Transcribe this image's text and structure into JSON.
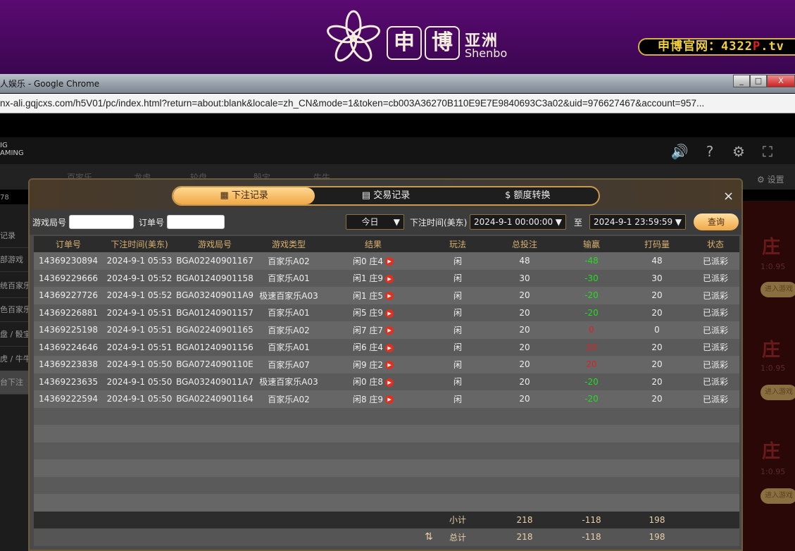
{
  "banner": {
    "logo_char1": "申",
    "logo_char2": "博",
    "logo_cn": "亚洲",
    "logo_en": "Shenbo",
    "site_prefix": "申博官网：4322",
    "site_p": "P",
    "site_suffix": ".tv"
  },
  "browser": {
    "title": "人娱乐 - Google Chrome",
    "url": "nx-ali.gqjcxs.com/h5V01/pc/index.html?return=about:blank&locale=zh_CN&mode=1&token=cb003A36270B110E9E7E9840693C3a02&uid=976627467&account=957...",
    "min": "_",
    "max": "□",
    "close": "X"
  },
  "app": {
    "brand": "IG\nAMING",
    "balance": "78",
    "settings_label": "设置",
    "nav": [
      "百家乐",
      "龙虎",
      "轮盘",
      "骰宝",
      "牛牛"
    ],
    "sidebar": [
      "记录",
      "部游戏",
      "统百家乐",
      "色百家乐",
      "盘 / 骰宝",
      "虎 / 牛牛",
      "台下注"
    ],
    "cards": [
      {
        "zhuang": "庄",
        "ratio": "1:0.95",
        "enter": "进入游戏"
      },
      {
        "zhuang": "庄",
        "ratio": "1:0.95",
        "enter": "进入游戏"
      },
      {
        "zhuang": "庄",
        "ratio": "1:0.95",
        "enter": "进入游戏"
      }
    ]
  },
  "modal": {
    "tabs": [
      {
        "icon": "calendar-icon",
        "label": "下注记录",
        "active": true
      },
      {
        "icon": "clipboard-icon",
        "label": "交易记录"
      },
      {
        "icon": "coins-icon",
        "label": "额度转换"
      }
    ],
    "close": "×",
    "filters": {
      "round_label": "游戏局号",
      "round_value": "",
      "order_label": "订单号",
      "order_value": "",
      "period": "今日",
      "time_label": "下注时间(美东)",
      "from": "2024-9-1 00:00:00",
      "to_label": "至",
      "to": "2024-9-1 23:59:59",
      "query": "查询"
    },
    "columns": [
      "订单号",
      "下注时间(美东)",
      "游戏局号",
      "游戏类型",
      "结果",
      "玩法",
      "总投注",
      "输赢",
      "打码量",
      "状态"
    ],
    "rows": [
      [
        "14369230894",
        "2024-9-1 05:53",
        "BGA02240901167",
        "百家乐A02",
        "闲0 庄4",
        "闲",
        "48",
        "-48",
        "48",
        "已派彩"
      ],
      [
        "14369229666",
        "2024-9-1 05:52",
        "BGA01240901158",
        "百家乐A01",
        "闲1 庄9",
        "闲",
        "30",
        "-30",
        "30",
        "已派彩"
      ],
      [
        "14369227726",
        "2024-9-1 05:52",
        "BGA032409011A9",
        "极速百家乐A03",
        "闲1 庄5",
        "闲",
        "20",
        "-20",
        "20",
        "已派彩"
      ],
      [
        "14369226881",
        "2024-9-1 05:51",
        "BGA01240901157",
        "百家乐A01",
        "闲5 庄9",
        "闲",
        "20",
        "-20",
        "20",
        "已派彩"
      ],
      [
        "14369225198",
        "2024-9-1 05:51",
        "BGA02240901165",
        "百家乐A02",
        "闲7 庄7",
        "闲",
        "20",
        "0",
        "0",
        "已派彩"
      ],
      [
        "14369224646",
        "2024-9-1 05:51",
        "BGA01240901156",
        "百家乐A01",
        "闲6 庄4",
        "闲",
        "20",
        "20",
        "20",
        "已派彩"
      ],
      [
        "14369223838",
        "2024-9-1 05:50",
        "BGA0724090110E",
        "百家乐A07",
        "闲9 庄2",
        "闲",
        "20",
        "20",
        "20",
        "已派彩"
      ],
      [
        "14369223635",
        "2024-9-1 05:50",
        "BGA032409011A7",
        "极速百家乐A03",
        "闲0 庄8",
        "闲",
        "20",
        "-20",
        "20",
        "已派彩"
      ],
      [
        "14369222594",
        "2024-9-1 05:50",
        "BGA02240901164",
        "百家乐A02",
        "闲8 庄9",
        "闲",
        "20",
        "-20",
        "20",
        "已派彩"
      ]
    ],
    "subtotal": {
      "label": "小计",
      "bet": "218",
      "winloss": "-118",
      "valid": "198"
    },
    "total": {
      "label": "总计",
      "bet": "218",
      "winloss": "-118",
      "valid": "198"
    },
    "colors": {
      "win": "#22dd22",
      "loss": "#dd2222",
      "accent": "#f0a848"
    }
  }
}
